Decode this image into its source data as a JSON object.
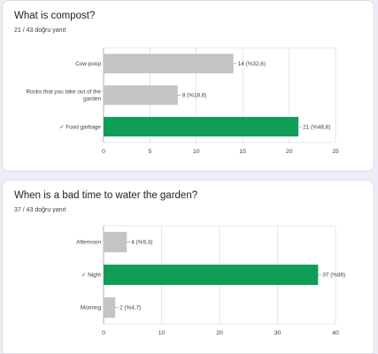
{
  "chart_data": [
    {
      "type": "bar",
      "orientation": "horizontal",
      "title": "What is compost?",
      "subtitle": "21 / 43 doğru yanıt",
      "categories": [
        [
          "Cow poop"
        ],
        [
          "Rocks that you take out of the",
          "garden"
        ],
        [
          "✓ Food garbage"
        ]
      ],
      "values": [
        14,
        8,
        21
      ],
      "value_labels": [
        "14 (%32,6)",
        "8 (%18,6)",
        "21 (%48,8)"
      ],
      "correct": [
        false,
        false,
        true
      ],
      "xlim": [
        0,
        25
      ],
      "xticks": [
        "0",
        "5",
        "10",
        "15",
        "20",
        "25"
      ],
      "grid": true
    },
    {
      "type": "bar",
      "orientation": "horizontal",
      "title": "When is a bad time to water the garden?",
      "subtitle": "37 / 43 doğru yanıt",
      "categories": [
        [
          "Afternoon"
        ],
        [
          "✓ Night"
        ],
        [
          "Morning"
        ]
      ],
      "values": [
        4,
        37,
        2
      ],
      "value_labels": [
        "4 (%9,3)",
        "37 (%86)",
        "2 (%4,7)"
      ],
      "correct": [
        false,
        true,
        false
      ],
      "xlim": [
        0,
        40
      ],
      "xticks": [
        "0",
        "10",
        "20",
        "30",
        "40"
      ],
      "grid": true
    }
  ],
  "colors": {
    "correct_bar": "#0f9d58",
    "incorrect_bar": "#c4c4c4",
    "grid": "#e0e0e0",
    "axis": "#9e9e9e",
    "leader": "#9e9e9e"
  }
}
